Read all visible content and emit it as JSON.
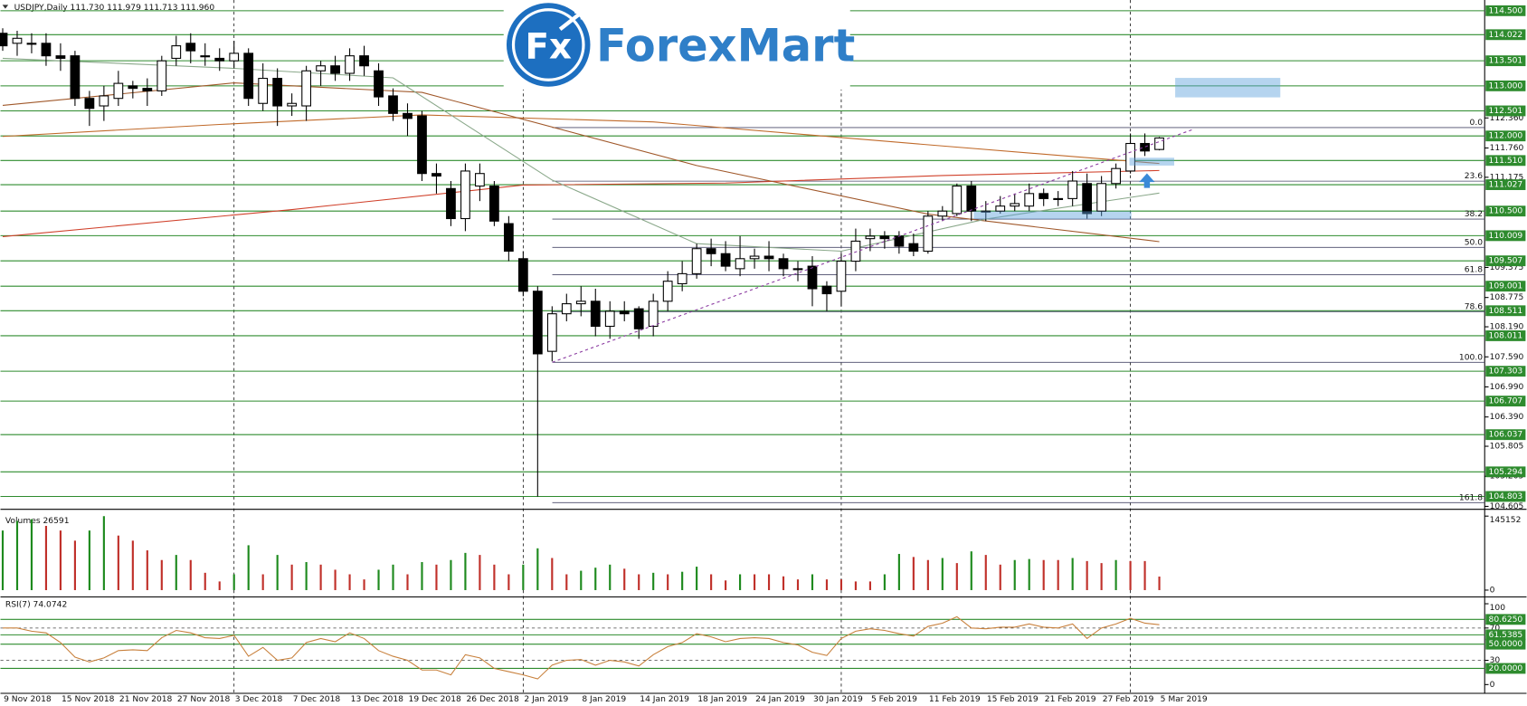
{
  "watermark": {
    "mark": "Fx",
    "name": "ForexMart"
  },
  "chart_data": [
    {
      "type": "candlestick",
      "title": "USDJPY,Daily  111.730 111.979 111.713 111.960",
      "categories": [
        "9 Nov 2018",
        null,
        null,
        null,
        "15 Nov 2018",
        null,
        null,
        null,
        "21 Nov 2018",
        null,
        null,
        null,
        "27 Nov 2018",
        null,
        null,
        null,
        "3 Dec 2018",
        null,
        null,
        null,
        "7 Dec 2018",
        null,
        null,
        null,
        "13 Dec 2018",
        null,
        null,
        null,
        "19 Dec 2018",
        null,
        null,
        null,
        "26 Dec 2018",
        null,
        null,
        null,
        "2 Jan 2019",
        null,
        null,
        null,
        "8 Jan 2019",
        null,
        null,
        null,
        "14 Jan 2019",
        null,
        null,
        null,
        "18 Jan 2019",
        null,
        null,
        null,
        "24 Jan 2019",
        null,
        null,
        null,
        "30 Jan 2019",
        null,
        null,
        null,
        "5 Feb 2019",
        null,
        null,
        null,
        "11 Feb 2019",
        null,
        null,
        null,
        "15 Feb 2019",
        null,
        null,
        null,
        "21 Feb 2019",
        null,
        null,
        null,
        "27 Feb 2019",
        null,
        null,
        null,
        "5 Mar 2019"
      ],
      "open": [
        114.05,
        113.85,
        113.85,
        113.85,
        113.6,
        113.6,
        112.75,
        112.6,
        112.75,
        113.0,
        112.95,
        112.9,
        113.55,
        113.85,
        113.6,
        113.55,
        113.5,
        113.65,
        112.65,
        113.15,
        112.6,
        112.6,
        113.3,
        113.4,
        113.25,
        113.6,
        113.3,
        112.8,
        112.45,
        112.4,
        111.25,
        110.95,
        110.35,
        111.0,
        111.0,
        110.25,
        109.55,
        108.9,
        107.7,
        108.45,
        108.65,
        108.7,
        108.2,
        108.5,
        108.55,
        108.2,
        108.7,
        109.05,
        109.25,
        109.75,
        109.65,
        109.35,
        109.55,
        109.6,
        109.55,
        109.35,
        109.4,
        109.0,
        108.9,
        109.5,
        109.95,
        110.0,
        110.0,
        109.85,
        109.7,
        110.4,
        110.45,
        111.0,
        110.5,
        110.5,
        110.6,
        110.6,
        110.85,
        110.75,
        110.75,
        111.05,
        110.5,
        111.05,
        111.3,
        111.85,
        111.73
      ],
      "high": [
        114.15,
        114.1,
        114.05,
        114.05,
        113.85,
        113.7,
        112.9,
        113.0,
        113.3,
        113.1,
        113.15,
        113.6,
        114.0,
        114.05,
        113.85,
        113.75,
        113.9,
        113.75,
        113.45,
        113.35,
        112.85,
        113.4,
        113.5,
        113.6,
        113.75,
        113.8,
        113.45,
        112.95,
        112.65,
        112.5,
        111.45,
        111.1,
        111.45,
        111.45,
        111.1,
        110.4,
        109.7,
        109.0,
        108.6,
        108.85,
        109.0,
        108.95,
        108.7,
        108.7,
        108.6,
        108.85,
        109.3,
        109.5,
        109.85,
        109.95,
        109.9,
        110.0,
        109.75,
        109.9,
        109.65,
        109.5,
        109.6,
        109.1,
        109.65,
        110.15,
        110.15,
        110.1,
        110.1,
        110.05,
        110.5,
        110.6,
        111.05,
        111.1,
        110.7,
        110.8,
        110.85,
        111.05,
        110.95,
        110.9,
        111.3,
        111.25,
        111.2,
        111.45,
        112.05,
        112.05,
        111.979
      ],
      "low": [
        113.7,
        113.6,
        113.65,
        113.4,
        113.3,
        112.6,
        112.2,
        112.3,
        112.6,
        112.75,
        112.6,
        112.8,
        113.4,
        113.45,
        113.4,
        113.3,
        113.35,
        112.6,
        112.5,
        112.2,
        112.4,
        112.3,
        113.0,
        113.1,
        113.1,
        113.2,
        112.6,
        112.3,
        112.0,
        111.1,
        110.85,
        110.2,
        110.1,
        110.7,
        110.2,
        109.5,
        108.8,
        104.8,
        107.5,
        108.3,
        108.4,
        108.0,
        107.95,
        108.3,
        107.95,
        108.0,
        108.5,
        108.9,
        109.15,
        109.4,
        109.3,
        109.2,
        109.35,
        109.3,
        109.2,
        109.1,
        108.6,
        108.5,
        108.6,
        109.3,
        109.7,
        109.75,
        109.65,
        109.6,
        109.65,
        110.3,
        110.4,
        110.3,
        110.3,
        110.45,
        110.5,
        110.5,
        110.6,
        110.6,
        110.6,
        110.35,
        110.4,
        110.95,
        111.25,
        111.6,
        111.713
      ],
      "close": [
        113.8,
        113.95,
        113.85,
        113.6,
        113.55,
        112.75,
        112.55,
        112.8,
        113.05,
        112.95,
        112.9,
        113.5,
        113.8,
        113.7,
        113.6,
        113.5,
        113.65,
        112.75,
        113.15,
        112.6,
        112.65,
        113.3,
        113.4,
        113.25,
        113.6,
        113.4,
        112.78,
        112.45,
        112.35,
        111.25,
        111.2,
        110.35,
        111.3,
        111.25,
        110.3,
        109.7,
        108.9,
        107.65,
        108.45,
        108.65,
        108.7,
        108.2,
        108.5,
        108.45,
        108.15,
        108.7,
        109.1,
        109.25,
        109.75,
        109.65,
        109.4,
        109.55,
        109.6,
        109.55,
        109.35,
        109.35,
        108.95,
        108.85,
        109.5,
        109.9,
        110.0,
        109.95,
        109.8,
        109.7,
        110.4,
        110.5,
        111.0,
        110.5,
        110.5,
        110.6,
        110.65,
        110.85,
        110.75,
        110.75,
        111.1,
        110.45,
        111.05,
        111.35,
        111.85,
        111.7,
        111.96
      ],
      "up_color": "#ffffff",
      "down_color": "#000000",
      "outline": "#000000",
      "ylim": [
        104.566,
        114.656
      ],
      "yticks": [
        {
          "value": 112.36,
          "label": "112.360"
        },
        {
          "value": 111.76,
          "label": "111.760"
        },
        {
          "value": 111.175,
          "label": "111.175"
        },
        {
          "value": 109.375,
          "label": "109.375"
        },
        {
          "value": 108.775,
          "label": "108.775"
        },
        {
          "value": 108.19,
          "label": "108.190"
        },
        {
          "value": 107.59,
          "label": "107.590"
        },
        {
          "value": 106.99,
          "label": "106.990"
        },
        {
          "value": 106.39,
          "label": "106.390"
        },
        {
          "value": 105.805,
          "label": "105.805"
        },
        {
          "value": 105.205,
          "label": "105.205"
        },
        {
          "value": 104.605,
          "label": "104.605"
        }
      ],
      "level_color": "#2e8b2e",
      "levels": [
        {
          "value": 114.5,
          "label": "114.500"
        },
        {
          "value": 114.022,
          "label": "114.022"
        },
        {
          "value": 113.501,
          "label": "113.501"
        },
        {
          "value": 113.0,
          "label": "113.000"
        },
        {
          "value": 112.501,
          "label": "112.501"
        },
        {
          "value": 112.0,
          "label": "112.000"
        },
        {
          "value": 111.51,
          "label": "111.510"
        },
        {
          "value": 111.027,
          "label": "111.027"
        },
        {
          "value": 110.5,
          "label": "110.500"
        },
        {
          "value": 110.009,
          "label": "110.009"
        },
        {
          "value": 109.507,
          "label": "109.507"
        },
        {
          "value": 109.001,
          "label": "109.001"
        },
        {
          "value": 108.511,
          "label": "108.511"
        },
        {
          "value": 108.011,
          "label": "108.011"
        },
        {
          "value": 107.303,
          "label": "107.303"
        },
        {
          "value": 106.707,
          "label": "106.707"
        },
        {
          "value": 106.037,
          "label": "106.037"
        },
        {
          "value": 105.294,
          "label": "105.294"
        },
        {
          "value": 104.803,
          "label": "104.803"
        }
      ],
      "fib_color": "#4a4a6a",
      "fib_levels": [
        {
          "label": "0.0",
          "price": 112.167
        },
        {
          "label": "23.6",
          "price": 111.098
        },
        {
          "label": "38.2",
          "price": 110.34
        },
        {
          "label": "50.0",
          "price": 109.776
        },
        {
          "label": "61.8",
          "price": 109.232
        },
        {
          "label": "78.6",
          "price": 108.493
        },
        {
          "label": "100.0",
          "price": 107.48
        },
        {
          "label": "161.8",
          "price": 104.68
        }
      ],
      "overlays": [
        {
          "color": "#d0402a",
          "x": [
            0,
            20,
            36,
            50,
            65,
            80
          ],
          "values": [
            109.99,
            110.53,
            111.02,
            111.06,
            111.21,
            111.31
          ]
        },
        {
          "color": "#c06a2a",
          "x": [
            0,
            15,
            29,
            45,
            65,
            80
          ],
          "values": [
            111.99,
            112.23,
            112.42,
            112.28,
            111.8,
            111.45
          ]
        },
        {
          "color": "#a0582a",
          "x": [
            0,
            16,
            29,
            48,
            64,
            80
          ],
          "values": [
            112.61,
            113.06,
            112.87,
            111.41,
            110.44,
            109.89
          ]
        },
        {
          "color": "#8aa88a",
          "x": [
            0,
            16,
            27,
            38,
            48,
            58,
            68,
            80
          ],
          "values": [
            113.55,
            113.35,
            113.16,
            111.12,
            109.85,
            109.7,
            110.34,
            110.86
          ]
        }
      ]
    },
    {
      "type": "bar",
      "title": "Volumes 26591",
      "up_color": "#1e8a1e",
      "down_color": "#c0302a",
      "values": [
        117000,
        136000,
        139000,
        126000,
        117000,
        97000,
        117000,
        145152,
        107000,
        97000,
        78000,
        59000,
        69000,
        59000,
        34000,
        17000,
        31000,
        88000,
        31000,
        69000,
        50000,
        55000,
        50000,
        40000,
        31000,
        21000,
        40000,
        50000,
        31000,
        55000,
        50000,
        59000,
        73000,
        69000,
        50000,
        31000,
        50000,
        82000,
        63000,
        31000,
        38000,
        44000,
        50000,
        42000,
        31000,
        34000,
        31000,
        36000,
        46000,
        31000,
        19000,
        31000,
        31000,
        31000,
        27000,
        21000,
        31000,
        21000,
        21000,
        17000,
        17000,
        31000,
        71000,
        65000,
        59000,
        63000,
        53000,
        76000,
        69000,
        50000,
        59000,
        61000,
        59000,
        59000,
        63000,
        57000,
        53000,
        59000,
        57000,
        57000,
        26591
      ],
      "ylim": [
        0,
        145152
      ],
      "yticks": [
        0,
        145152
      ]
    },
    {
      "type": "line",
      "title": "RSI(7) 74.0742",
      "color": "#c8803c",
      "values": [
        70,
        70,
        66,
        64,
        52,
        34,
        28,
        33,
        42,
        43,
        42,
        58,
        67,
        64,
        58,
        57,
        61,
        35,
        46,
        30,
        33,
        52,
        57,
        53,
        64,
        57,
        42,
        35,
        30,
        18,
        18,
        12,
        37,
        33,
        20,
        16,
        12,
        7,
        24,
        30,
        31,
        24,
        30,
        28,
        23,
        37,
        47,
        52,
        63,
        59,
        53,
        57,
        58,
        57,
        52,
        49,
        40,
        36,
        57,
        66,
        69,
        67,
        63,
        60,
        72,
        76,
        84,
        70,
        69,
        71,
        71,
        75,
        71,
        70,
        75,
        57,
        70,
        75,
        82,
        76,
        74.0742
      ],
      "ylim": [
        0,
        100
      ],
      "yticks": [
        0,
        30,
        70,
        100
      ],
      "grid": true,
      "level_color": "#2e8b2e",
      "levels": [
        {
          "value": 80.625,
          "label": "80.6250"
        },
        {
          "value": 61.5385,
          "label": "61.5385"
        },
        {
          "value": 50,
          "label": "50.0000"
        },
        {
          "value": 20,
          "label": "20.0000"
        }
      ]
    }
  ]
}
